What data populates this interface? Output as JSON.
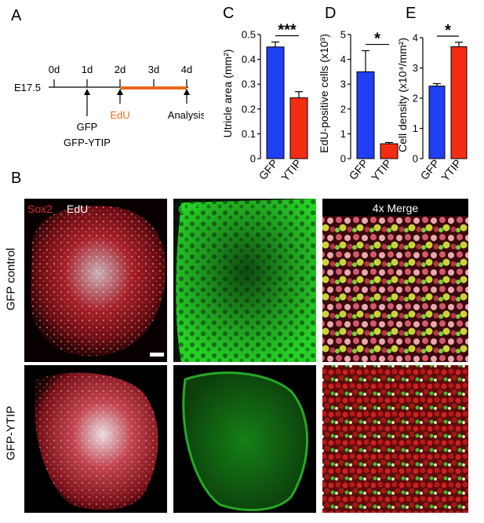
{
  "figure": {
    "panel_letters": {
      "a": "A",
      "b": "B",
      "c": "C",
      "d": "D",
      "e": "E"
    },
    "timeline": {
      "start_label": "E17.5",
      "days": [
        "0d",
        "1d",
        "2d",
        "3d",
        "4d"
      ],
      "events": {
        "gfp": "GFP",
        "gfp_ytip": "GFP-YTIP",
        "edu": "EdU",
        "analysis": "Analysis"
      },
      "edu_color": "#e8691e"
    },
    "micrographs": {
      "col1_label_a": "Sox2",
      "col1_label_b": "EdU",
      "col2_label": "GFP",
      "col3_label": "4x Merge",
      "row1_label": "GFP control",
      "row2_label": "GFP-YTIP",
      "sox2_color": "#e2262f",
      "gfp_color": "#27d627"
    }
  },
  "chart_data": [
    {
      "type": "bar",
      "panel": "C",
      "categories": [
        "GFP",
        "YTIP"
      ],
      "values": [
        0.45,
        0.245
      ],
      "errors": [
        0.02,
        0.025
      ],
      "ylabel": "Utricle area (mm²)",
      "ylim": [
        0,
        0.5
      ],
      "yticks": [
        "0",
        "0.1",
        "0.2",
        "0.3",
        "0.4",
        "0.5"
      ],
      "significance": "***",
      "colors": [
        "#1f3ff4",
        "#f42c14"
      ]
    },
    {
      "type": "bar",
      "panel": "D",
      "categories": [
        "GFP",
        "YTIP"
      ],
      "values": [
        3.5,
        0.6
      ],
      "errors": [
        0.85,
        0.05
      ],
      "ylabel": "EdU-positive cells (x10³)",
      "ylim": [
        0,
        5
      ],
      "yticks": [
        "0",
        "1",
        "2",
        "3",
        "4",
        "5"
      ],
      "significance": "*",
      "colors": [
        "#1f3ff4",
        "#f42c14"
      ]
    },
    {
      "type": "bar",
      "panel": "E",
      "categories": [
        "GFP",
        "YTIP"
      ],
      "values": [
        2.4,
        3.7
      ],
      "errors": [
        0.08,
        0.15
      ],
      "ylabel": "Cell density (x10⁴/mm²)",
      "ylim": [
        0,
        4
      ],
      "yticks": [
        "0",
        "1",
        "2",
        "3",
        "4"
      ],
      "significance": "*",
      "colors": [
        "#1f3ff4",
        "#f42c14"
      ]
    }
  ]
}
